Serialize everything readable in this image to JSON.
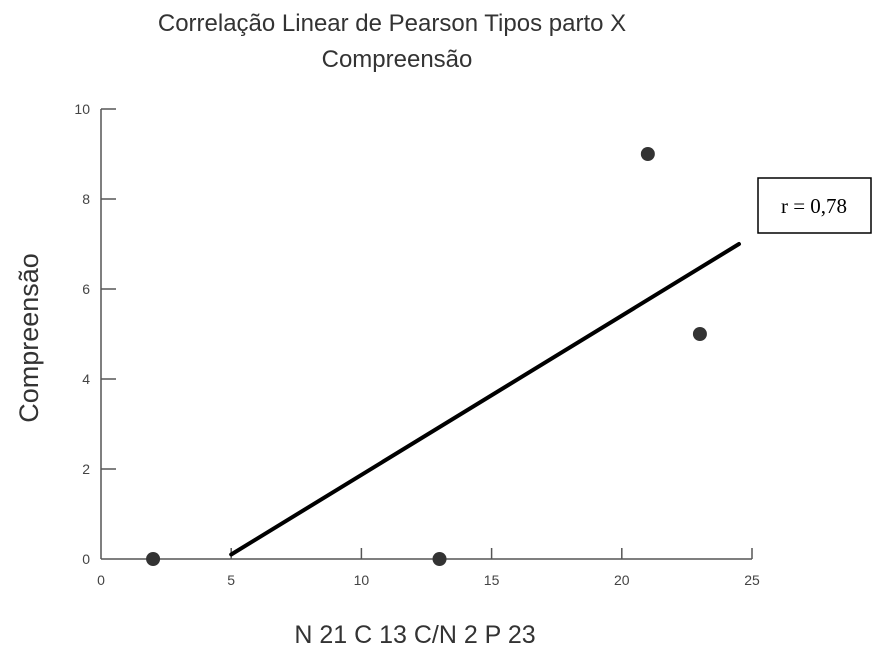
{
  "chart_data": {
    "type": "scatter",
    "title": "Correlação Linear de Pearson Tipos parto X Compreensão",
    "title_lines": [
      "Correlação Linear de Pearson Tipos parto X",
      "Compreensão"
    ],
    "xlabel": "N 21 C 13 C/N 2 P 23",
    "ylabel": "Compreensão",
    "xlim": [
      0,
      25
    ],
    "ylim": [
      0,
      10
    ],
    "x_ticks": [
      0,
      5,
      10,
      15,
      20,
      25
    ],
    "y_ticks": [
      0,
      2,
      4,
      6,
      8,
      10
    ],
    "grid": false,
    "series": [
      {
        "points": [
          {
            "x": 2,
            "y": 0
          },
          {
            "x": 13,
            "y": 0
          },
          {
            "x": 21,
            "y": 9
          },
          {
            "x": 23,
            "y": 5
          }
        ]
      }
    ],
    "trendline": {
      "x1": 5,
      "y1": 0.1,
      "x2": 24.5,
      "y2": 7
    },
    "annotations": [
      {
        "text": "r = 0,78"
      }
    ],
    "colors": {
      "points": "#333333",
      "trendline": "#000000",
      "axis": "#555555"
    }
  }
}
